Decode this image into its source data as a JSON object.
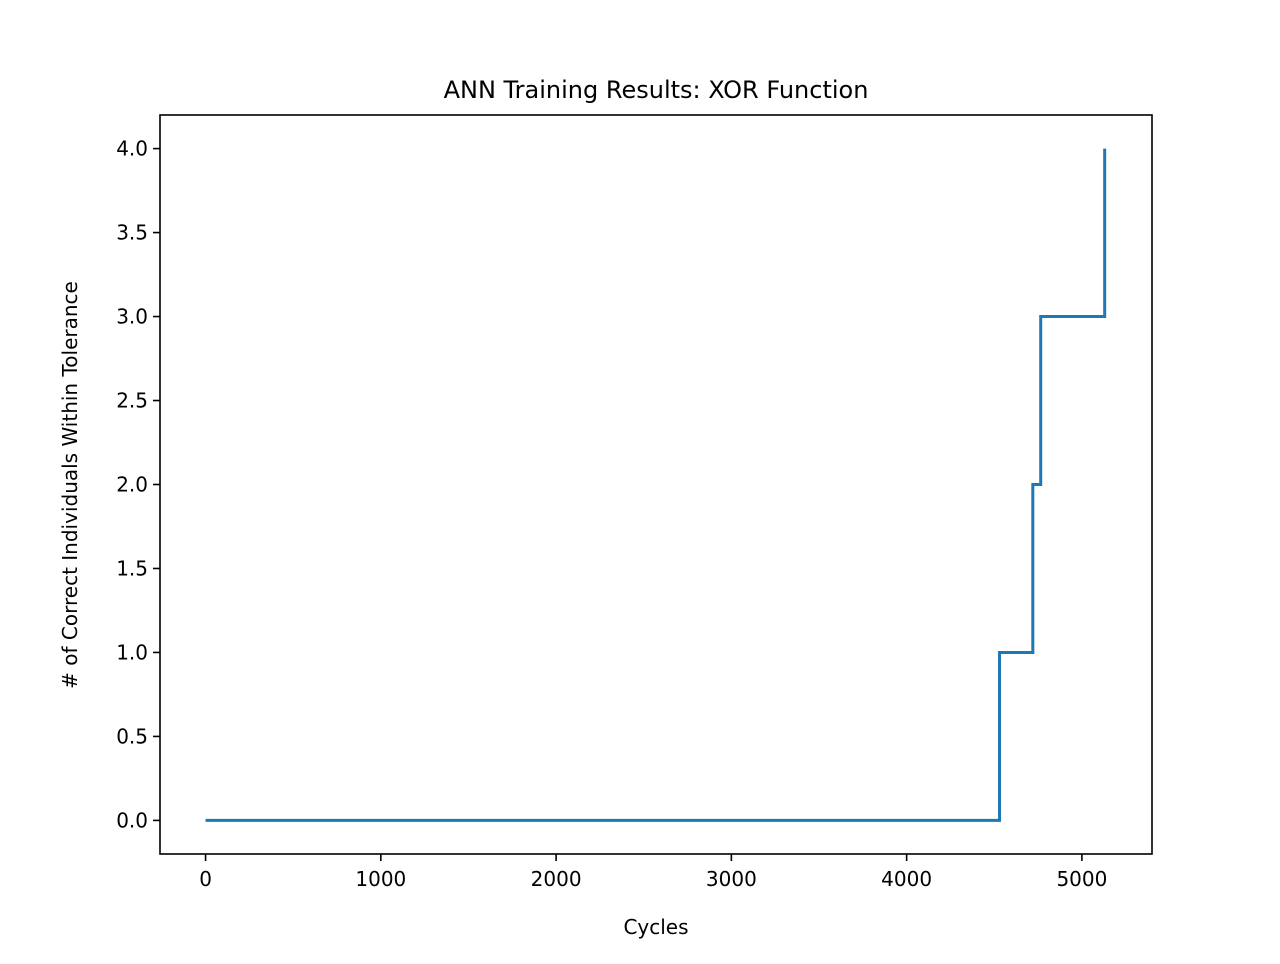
{
  "chart_data": {
    "type": "line",
    "title": "ANN Training Results: XOR Function",
    "xlabel": "Cycles",
    "ylabel": "# of Correct Individuals Within Tolerance",
    "xlim": [
      -260,
      5400
    ],
    "ylim": [
      -0.2,
      4.2
    ],
    "xticks": [
      0,
      1000,
      2000,
      3000,
      4000,
      5000
    ],
    "xtick_labels": [
      "0",
      "1000",
      "2000",
      "3000",
      "4000",
      "5000"
    ],
    "yticks": [
      0.0,
      0.5,
      1.0,
      1.5,
      2.0,
      2.5,
      3.0,
      3.5,
      4.0
    ],
    "ytick_labels": [
      "0.0",
      "0.5",
      "1.0",
      "1.5",
      "2.0",
      "2.5",
      "3.0",
      "3.5",
      "4.0"
    ],
    "grid": false,
    "legend": "none",
    "series": [
      {
        "color": "#1f77b4",
        "x": [
          0,
          4530,
          4530,
          4720,
          4720,
          4765,
          4765,
          5130,
          5130
        ],
        "y": [
          0,
          0,
          1,
          1,
          2,
          2,
          3,
          3,
          4
        ]
      }
    ]
  }
}
